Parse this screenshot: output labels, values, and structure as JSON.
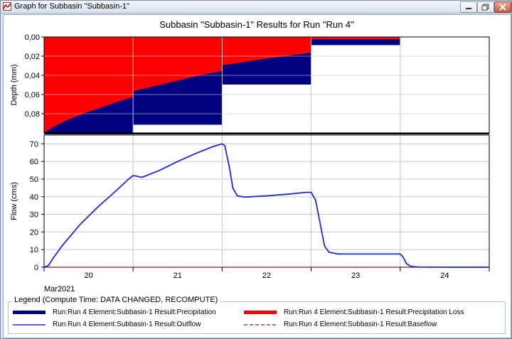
{
  "window": {
    "title": "Graph for Subbasin \"Subbasin-1\"",
    "buttons": [
      "minimize",
      "maximize",
      "close"
    ]
  },
  "colors": {
    "precipitation": "#000080",
    "precipitation_loss": "#ff0000",
    "outflow": "#1f2ad6",
    "baseflow": "#8b1a1a",
    "grid": "#c8c8c8"
  },
  "chart_data": [
    {
      "type": "area",
      "title": "Subbasin \"Subbasin-1\" Results for Run \"Run 4\"",
      "ylabel": "Depth (mm)",
      "y_inverted": true,
      "ylim": [
        0,
        0.1
      ],
      "yticks": [
        "0,00",
        "0,02",
        "0,04",
        "0,06",
        "0,08"
      ],
      "xlim": [
        0,
        5
      ],
      "series": [
        {
          "name": "Run:Run 4 Element:Subbasin-1 Result:Precipitation",
          "x": [
            0,
            0.1,
            0.25,
            0.5,
            0.75,
            1,
            1,
            1.25,
            1.5,
            1.75,
            2,
            2,
            2.5,
            3,
            3,
            3.5,
            4,
            4
          ],
          "values": [
            0.1,
            0.094,
            0.087,
            0.078,
            0.07,
            0.0625,
            0.0565,
            0.051,
            0.0455,
            0.04,
            0.0355,
            0.0295,
            0.0225,
            0.0165,
            0.0025,
            0.0025,
            0.0025,
            0
          ]
        },
        {
          "name": "Run:Run 4 Element:Subbasin-1 Result:Precipitation Loss",
          "x": [
            0,
            1,
            1,
            2,
            2,
            3,
            3,
            4,
            4
          ],
          "values": [
            0.1,
            0.1,
            0.0915,
            0.0915,
            0.0495,
            0.0495,
            0.0085,
            0.0085,
            0
          ]
        }
      ]
    },
    {
      "type": "line",
      "ylabel": "Flow (cms)",
      "xlabel": "Mar2021",
      "ylim": [
        0,
        75
      ],
      "yticks": [
        "0",
        "10",
        "20",
        "30",
        "40",
        "50",
        "60",
        "70"
      ],
      "xlim": [
        0,
        5
      ],
      "categories": [
        "20",
        "21",
        "22",
        "23",
        "24"
      ],
      "series": [
        {
          "name": "Run:Run 4 Element:Subbasin-1 Result:Outflow",
          "x": [
            0,
            0.05,
            0.1,
            0.2,
            0.4,
            0.6,
            0.8,
            0.95,
            1.0,
            1.05,
            1.1,
            1.3,
            1.5,
            1.7,
            1.9,
            2.0,
            2.03,
            2.08,
            2.12,
            2.17,
            2.25,
            2.5,
            2.75,
            2.95,
            3.0,
            3.05,
            3.1,
            3.15,
            3.2,
            3.3,
            3.6,
            3.9,
            4.0,
            4.03,
            4.07,
            4.12,
            4.2,
            4.5,
            5.0
          ],
          "values": [
            0,
            1,
            5,
            12,
            24,
            34,
            43,
            50,
            52,
            51.5,
            51,
            55,
            60,
            64.5,
            68.5,
            70,
            69,
            57,
            45,
            40.5,
            39.8,
            40.5,
            41.5,
            42.5,
            42.5,
            38,
            25,
            12,
            8.5,
            7.5,
            7.5,
            7.5,
            7.5,
            6,
            2,
            0.5,
            0.1,
            0,
            0
          ]
        },
        {
          "name": "Run:Run 4 Element:Subbasin-1 Result:Baseflow",
          "x": [
            0,
            5
          ],
          "values": [
            0,
            0
          ]
        }
      ]
    }
  ],
  "legend": {
    "title": "Legend (Compute Time: DATA CHANGED, RECOMPUTE)",
    "items": [
      {
        "label": "Run:Run 4 Element:Subbasin-1 Result:Precipitation",
        "style": "thick-navy"
      },
      {
        "label": "Run:Run 4 Element:Subbasin-1 Result:Precipitation Loss",
        "style": "thick-red"
      },
      {
        "label": "Run:Run 4 Element:Subbasin-1 Result:Outflow",
        "style": "thin-blue"
      },
      {
        "label": "Run:Run 4 Element:Subbasin-1 Result:Baseflow",
        "style": "dashed-brown"
      }
    ]
  }
}
